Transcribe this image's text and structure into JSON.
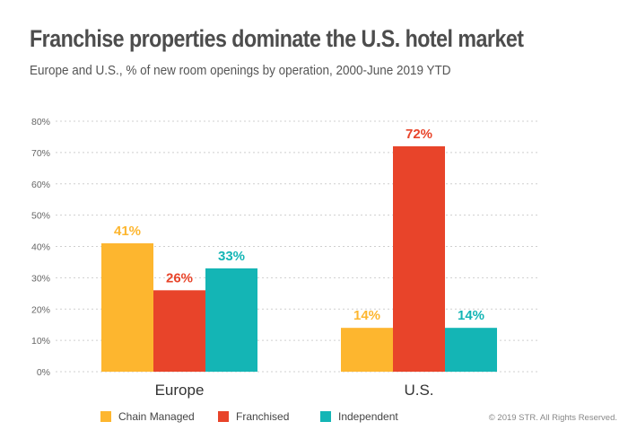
{
  "colors": {
    "chain_managed": "#FDB62F",
    "franchised": "#E8442A",
    "independent": "#14B5B5",
    "grid": "#cfcfcf",
    "axis_text": "#666666"
  },
  "chart_data": {
    "type": "bar",
    "title": "Franchise properties dominate the U.S. hotel market",
    "subtitle": "Europe and U.S., % of new room openings by operation, 2000-June 2019 YTD",
    "categories": [
      "Europe",
      "U.S."
    ],
    "series": [
      {
        "name": "Chain Managed",
        "values": [
          41,
          14
        ],
        "labels": [
          "41%",
          "14%"
        ],
        "color": "#FDB62F"
      },
      {
        "name": "Franchised",
        "values": [
          26,
          72
        ],
        "labels": [
          "26%",
          "72%"
        ],
        "color": "#E8442A"
      },
      {
        "name": "Independent",
        "values": [
          33,
          14
        ],
        "labels": [
          "33%",
          "14%"
        ],
        "color": "#14B5B5"
      }
    ],
    "yticks": [
      "0%",
      "10%",
      "20%",
      "30%",
      "40%",
      "50%",
      "60%",
      "70%",
      "80%"
    ],
    "ylim": [
      0,
      80
    ],
    "grid": true,
    "legend": "bottom"
  },
  "footer": {
    "copyright": "© 2019 STR. All Rights Reserved."
  }
}
